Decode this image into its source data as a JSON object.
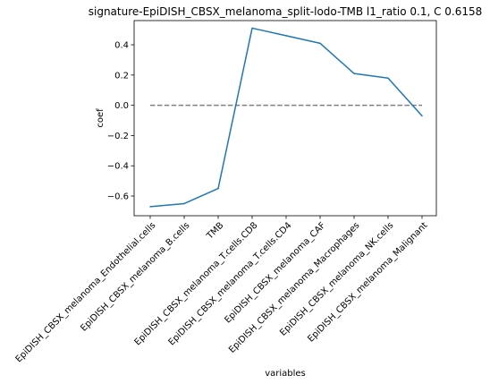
{
  "chart_data": {
    "type": "line",
    "title": "signature-EpiDISH_CBSX_melanoma_split-lodo-TMB l1_ratio 0.1, C 0.6158",
    "xlabel": "variables",
    "ylabel": "coef",
    "categories": [
      "EpiDISH_CBSX_melanoma_Endothelial.cells",
      "EpiDISH_CBSX_melanoma_B.cells",
      "TMB",
      "EpiDISH_CBSX_melanoma_T.cells.CD8",
      "EpiDISH_CBSX_melanoma_T.cells.CD4",
      "EpiDISH_CBSX_melanoma_CAF",
      "EpiDISH_CBSX_melanoma_Macrophages",
      "EpiDISH_CBSX_melanoma_NK.cells",
      "EpiDISH_CBSX_melanoma_Malignant"
    ],
    "series": [
      {
        "values": [
          -0.67,
          -0.65,
          -0.55,
          0.51,
          0.46,
          0.41,
          0.21,
          0.18,
          -0.07
        ],
        "color": "#1f77b4"
      }
    ],
    "reference_line": {
      "y": 0.0,
      "style": "dashed",
      "color": "#808080"
    },
    "yticks": [
      -0.6,
      -0.4,
      -0.2,
      0.0,
      0.2,
      0.4
    ],
    "ytick_labels": [
      "−0.6",
      "−0.4",
      "−0.2",
      "0.0",
      "0.2",
      "0.4"
    ],
    "ylim": [
      -0.73,
      0.56
    ],
    "grid": false,
    "legend": "none"
  }
}
